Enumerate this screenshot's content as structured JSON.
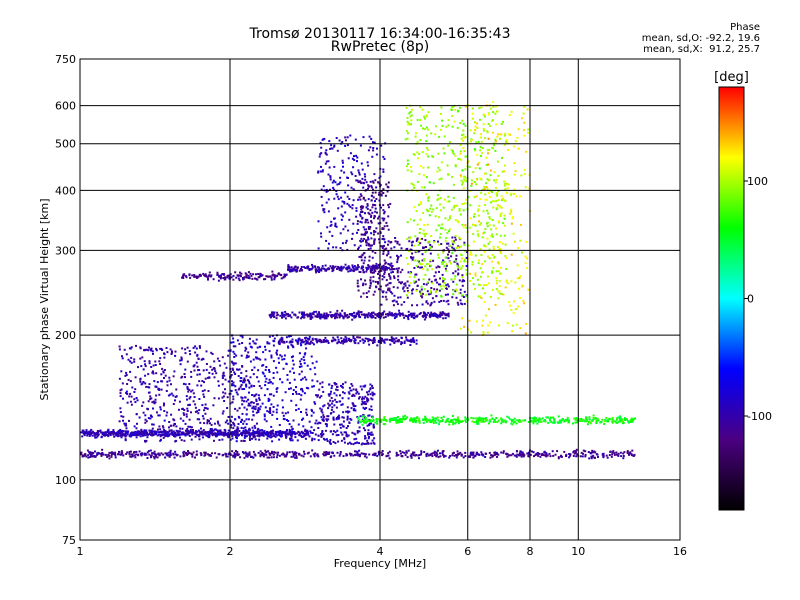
{
  "chart_data": {
    "type": "scatter",
    "title": "Tromsø 20130117 16:34:00-16:35:43",
    "subtitle": "RwPretec (8p)",
    "xlabel": "Frequency [MHz]",
    "ylabel": "Stationary phase Virtual Height [km]",
    "x_scale": "log",
    "y_scale": "log",
    "xlim": [
      1,
      16
    ],
    "ylim": [
      75,
      750
    ],
    "x_ticks": [
      "1",
      "2",
      "4",
      "6",
      "8",
      "10",
      "16"
    ],
    "y_ticks": [
      "75",
      "100",
      "200",
      "300",
      "400",
      "500",
      "600",
      "750"
    ],
    "grid": true,
    "phase_stats": {
      "heading": "Phase",
      "o_line": "mean, sd,O: -92.2, 19.6",
      "x_line": "mean, sd,X:  91.2, 25.7"
    },
    "colorbar": {
      "label": "[deg]",
      "range": [
        -180,
        180
      ],
      "ticks": [
        "100",
        "0",
        "-100"
      ],
      "tick_values": [
        100,
        0,
        -100
      ],
      "colors": [
        "#000000",
        "#4b0082",
        "#0000ff",
        "#00ffff",
        "#00ff00",
        "#ffff00",
        "#ff0000"
      ]
    },
    "traces": [
      {
        "name": "",
        "x_range": [
          1.0,
          13.0
        ],
        "height": 113,
        "phase": -110,
        "points": 700
      },
      {
        "name": "",
        "x_range": [
          1.0,
          2.9
        ],
        "height": 125,
        "phase": -95,
        "points": 650
      },
      {
        "name": "",
        "x_range": [
          1.2,
          2.3
        ],
        "height_range": [
          120,
          190
        ],
        "phase": -100,
        "points": 600
      },
      {
        "name": "",
        "x_range": [
          2.0,
          3.0
        ],
        "height_range": [
          120,
          200
        ],
        "phase": -85,
        "points": 350
      },
      {
        "name": "",
        "x_range": [
          3.0,
          3.9
        ],
        "height_range": [
          118,
          160
        ],
        "phase": -95,
        "points": 300
      },
      {
        "name": "",
        "x_range": [
          3.6,
          13.0
        ],
        "height": 133,
        "phase": 60,
        "points": 450
      },
      {
        "name": "",
        "x_range": [
          1.6,
          2.6
        ],
        "height": 265,
        "phase": -110,
        "points": 150
      },
      {
        "name": "",
        "x_range": [
          2.4,
          5.5
        ],
        "height": 220,
        "phase": -100,
        "points": 350
      },
      {
        "name": "",
        "x_range": [
          2.5,
          4.8
        ],
        "height": 195,
        "phase": -100,
        "points": 200
      },
      {
        "name": "",
        "x_range": [
          2.6,
          4.2
        ],
        "height": 275,
        "phase": -100,
        "points": 200
      },
      {
        "name": "",
        "x_range": [
          3.0,
          4.1
        ],
        "height_range": [
          300,
          520
        ],
        "phase": -90,
        "points": 250
      },
      {
        "name": "",
        "x_range": [
          3.6,
          4.2
        ],
        "height_range": [
          240,
          420
        ],
        "phase": -115,
        "points": 220
      },
      {
        "name": "",
        "x_range": [
          4.0,
          6.0
        ],
        "height_range": [
          230,
          320
        ],
        "phase": -105,
        "points": 280
      },
      {
        "name": "",
        "x_range": [
          4.5,
          7.2
        ],
        "height_range": [
          240,
          600
        ],
        "phase": 95,
        "points": 550
      },
      {
        "name": "",
        "x_range": [
          5.8,
          8.0
        ],
        "height_range": [
          200,
          620
        ],
        "phase": 120,
        "points": 250
      }
    ]
  }
}
